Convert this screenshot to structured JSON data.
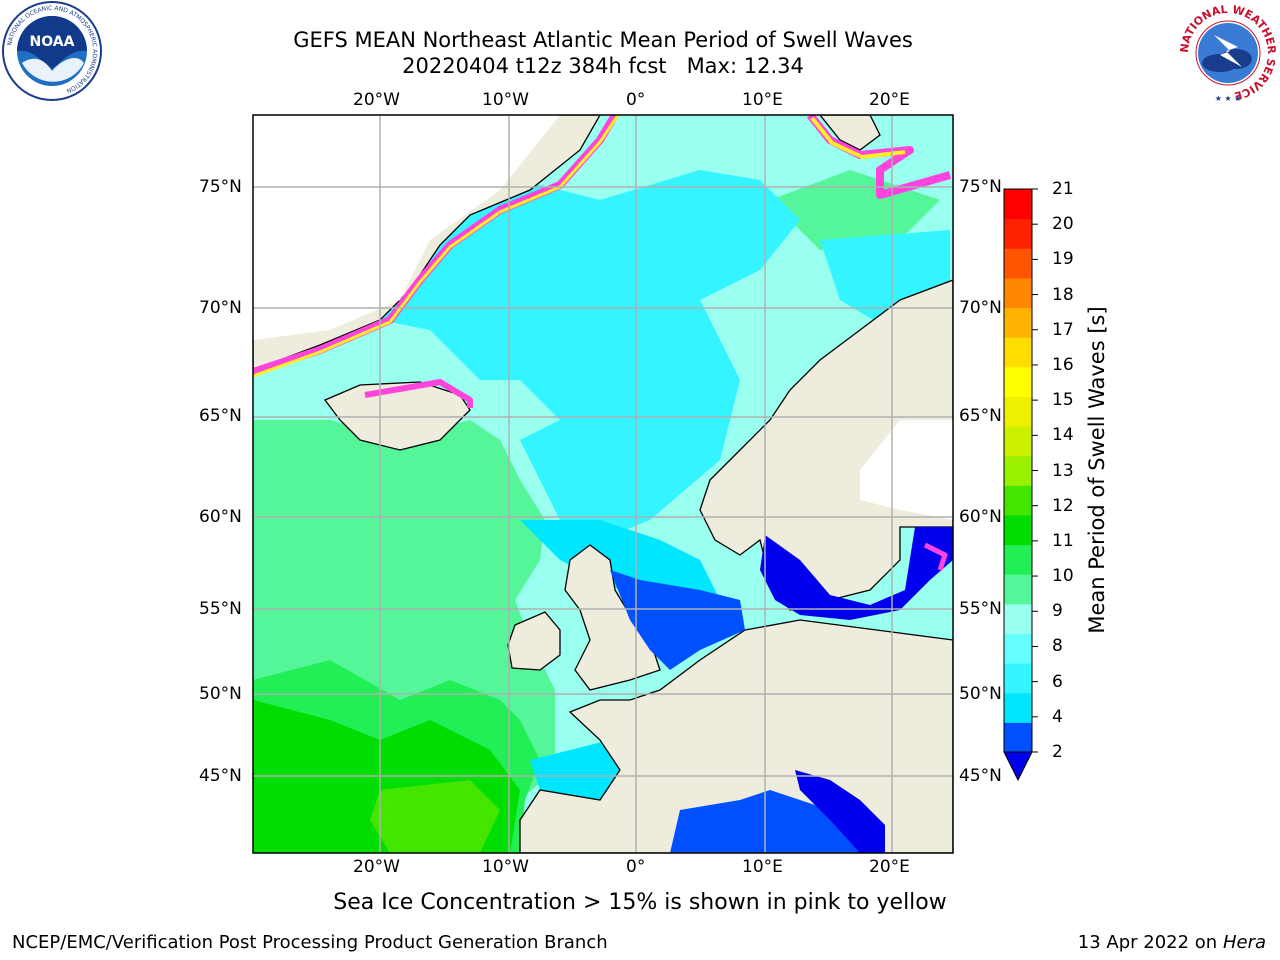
{
  "title": {
    "line1": "GEFS MEAN Northeast Atlantic Mean Period of Swell Waves",
    "line2": "20220404 t12z 384h fcst   Max: 12.34"
  },
  "logos": {
    "left": {
      "name": "NOAA",
      "ring_text": "NATIONAL OCEANIC AND ATMOSPHERIC ADMINISTRATION",
      "bottom_text": "U.S. DEPARTMENT OF COMMERCE"
    },
    "right": {
      "name": "NATIONAL WEATHER SERVICE"
    }
  },
  "map": {
    "lon_ticks": [
      "20°W",
      "10°W",
      "0°",
      "10°E",
      "20°E"
    ],
    "lat_ticks": [
      "75°N",
      "70°N",
      "65°N",
      "60°N",
      "55°N",
      "50°N",
      "45°N"
    ],
    "lon_range": [
      -30,
      25
    ],
    "lat_range": [
      41,
      78
    ],
    "grid": true,
    "land_color": "#eeecdc",
    "sea_ice_colors": [
      "#ff44dd",
      "#ffee22"
    ]
  },
  "colorbar": {
    "label": "Mean Period of Swell Waves [s]",
    "ticks": [
      "21",
      "20",
      "19",
      "18",
      "17",
      "16",
      "15",
      "14",
      "13",
      "12",
      "11",
      "10",
      "9",
      "8",
      "6",
      "4",
      "2"
    ],
    "colors": [
      "#0050ff",
      "#00e6ff",
      "#33f4ff",
      "#66ffff",
      "#99ffee",
      "#55f59a",
      "#22ee55",
      "#00dd00",
      "#44e600",
      "#99f000",
      "#ccf000",
      "#eef000",
      "#ffff00",
      "#ffdd00",
      "#ffb300",
      "#ff8800",
      "#ff5500",
      "#ff2200",
      "#ff0000"
    ],
    "extend_color": "#0000ee"
  },
  "caption": "Sea Ice Concentration > 15% is shown in pink to yellow",
  "footer": {
    "left": "NCEP/EMC/Verification Post Processing Product Generation Branch",
    "right_prefix": "13 Apr 2022 on ",
    "right_machine": "Hera"
  }
}
